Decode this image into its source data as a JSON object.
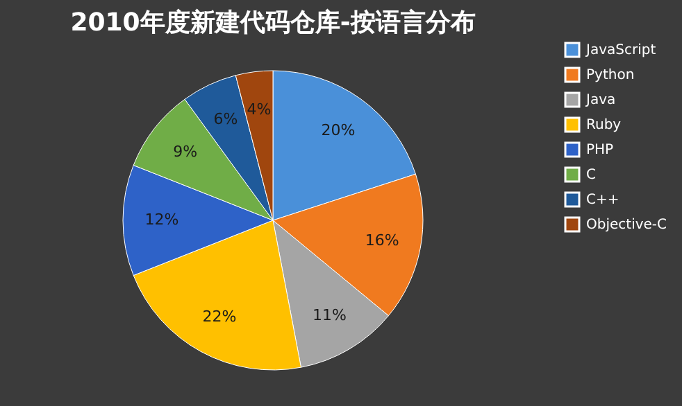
{
  "chart_data": {
    "type": "pie",
    "title": "2010年度新建代码仓库-按语言分布",
    "categories": [
      "JavaScript",
      "Python",
      "Java",
      "Ruby",
      "PHP",
      "C",
      "C++",
      "Objective-C"
    ],
    "values": [
      20,
      16,
      11,
      22,
      12,
      9,
      6,
      4
    ],
    "colors": [
      "#4a90d9",
      "#f07a1f",
      "#a5a5a5",
      "#ffc000",
      "#2e62c8",
      "#70ad47",
      "#1f5a9a",
      "#a0460e"
    ],
    "value_labels": [
      "20%",
      "16%",
      "11%",
      "22%",
      "12%",
      "9%",
      "6%",
      "4%"
    ],
    "legend": "right"
  }
}
